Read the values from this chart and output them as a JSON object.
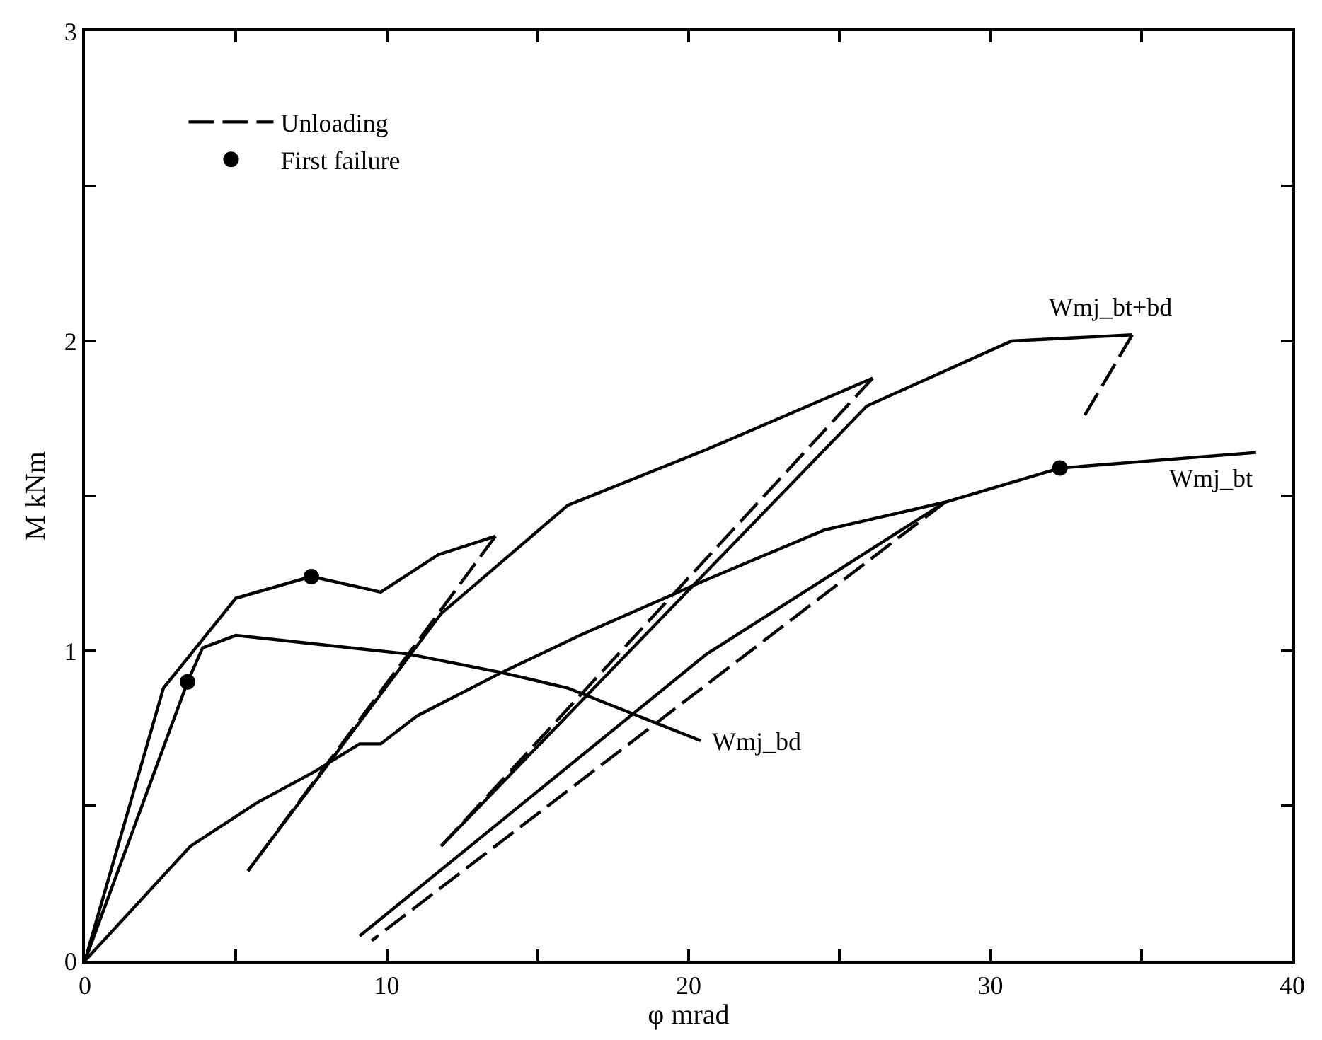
{
  "chart_data": {
    "type": "line",
    "xlabel": "φ mrad",
    "ylabel": "M kNm",
    "xlim": [
      0,
      40
    ],
    "ylim": [
      0,
      3
    ],
    "xticks": [
      0,
      {
        "value": 5,
        "label": null
      },
      10,
      {
        "value": 15,
        "label": null
      },
      20,
      {
        "value": 25,
        "label": null
      },
      30,
      {
        "value": 35,
        "label": null
      },
      40
    ],
    "yticks": [
      0,
      {
        "value": 0.5,
        "label": null
      },
      1,
      {
        "value": 1.5,
        "label": null
      },
      2,
      {
        "value": 2.5,
        "label": null
      },
      3
    ],
    "legend": "top left",
    "marker": "none",
    "series": [
      {
        "color": "#000000",
        "line_style": "solid",
        "x": [
          0,
          2.6,
          5.0,
          7.5,
          9.8,
          11.7,
          13.6
        ],
        "values": [
          0,
          0.88,
          1.17,
          1.24,
          1.19,
          1.31,
          1.37
        ]
      },
      {
        "color": "#000000",
        "line_style": "solid",
        "x": [
          5.4,
          11.8,
          16.0,
          20.6,
          26.1
        ],
        "values": [
          0.29,
          1.12,
          1.47,
          1.65,
          1.88
        ]
      },
      {
        "name": "Wmj_bt+bd",
        "color": "#000000",
        "line_style": "solid",
        "x": [
          11.8,
          25.9,
          30.7,
          34.7
        ],
        "values": [
          0.37,
          1.79,
          2.0,
          2.02
        ]
      },
      {
        "name": "Wmj_bd",
        "color": "#000000",
        "line_style": "solid",
        "x": [
          0,
          3.4,
          3.9,
          5.0,
          10.7,
          13.8,
          16.0,
          20.4
        ],
        "values": [
          0,
          0.9,
          1.01,
          1.05,
          0.99,
          0.93,
          0.88,
          0.71
        ]
      },
      {
        "name": "Wmj_bt",
        "color": "#000000",
        "line_style": "solid",
        "x": [
          0,
          3.5,
          5.7,
          7.6,
          9.1,
          9.8,
          11.0,
          13.8,
          16.4,
          20.6,
          24.5,
          28.5,
          32.3,
          38.8
        ],
        "values": [
          0,
          0.37,
          0.51,
          0.61,
          0.7,
          0.7,
          0.79,
          0.93,
          1.05,
          1.23,
          1.39,
          1.48,
          1.59,
          1.64
        ]
      },
      {
        "color": "#000000",
        "line_style": "solid",
        "x": [
          9.1,
          20.6,
          28.5
        ],
        "values": [
          0.08,
          0.99,
          1.48
        ]
      },
      {
        "name": "Unloading",
        "color": "#000000",
        "line_style": "dashed",
        "x": [
          13.6,
          5.4,
          null,
          26.1,
          11.8,
          null,
          34.7,
          33.0,
          null,
          28.5,
          9.5
        ],
        "values": [
          1.37,
          0.29,
          null,
          1.88,
          0.37,
          null,
          2.02,
          1.74,
          null,
          1.48,
          0.065
        ]
      },
      {
        "name": "First failure",
        "type": "scatter",
        "marker": "circle",
        "color": "#000000",
        "x": [
          3.4,
          7.5,
          32.3
        ],
        "values": [
          0.9,
          1.24,
          1.59
        ]
      }
    ]
  }
}
